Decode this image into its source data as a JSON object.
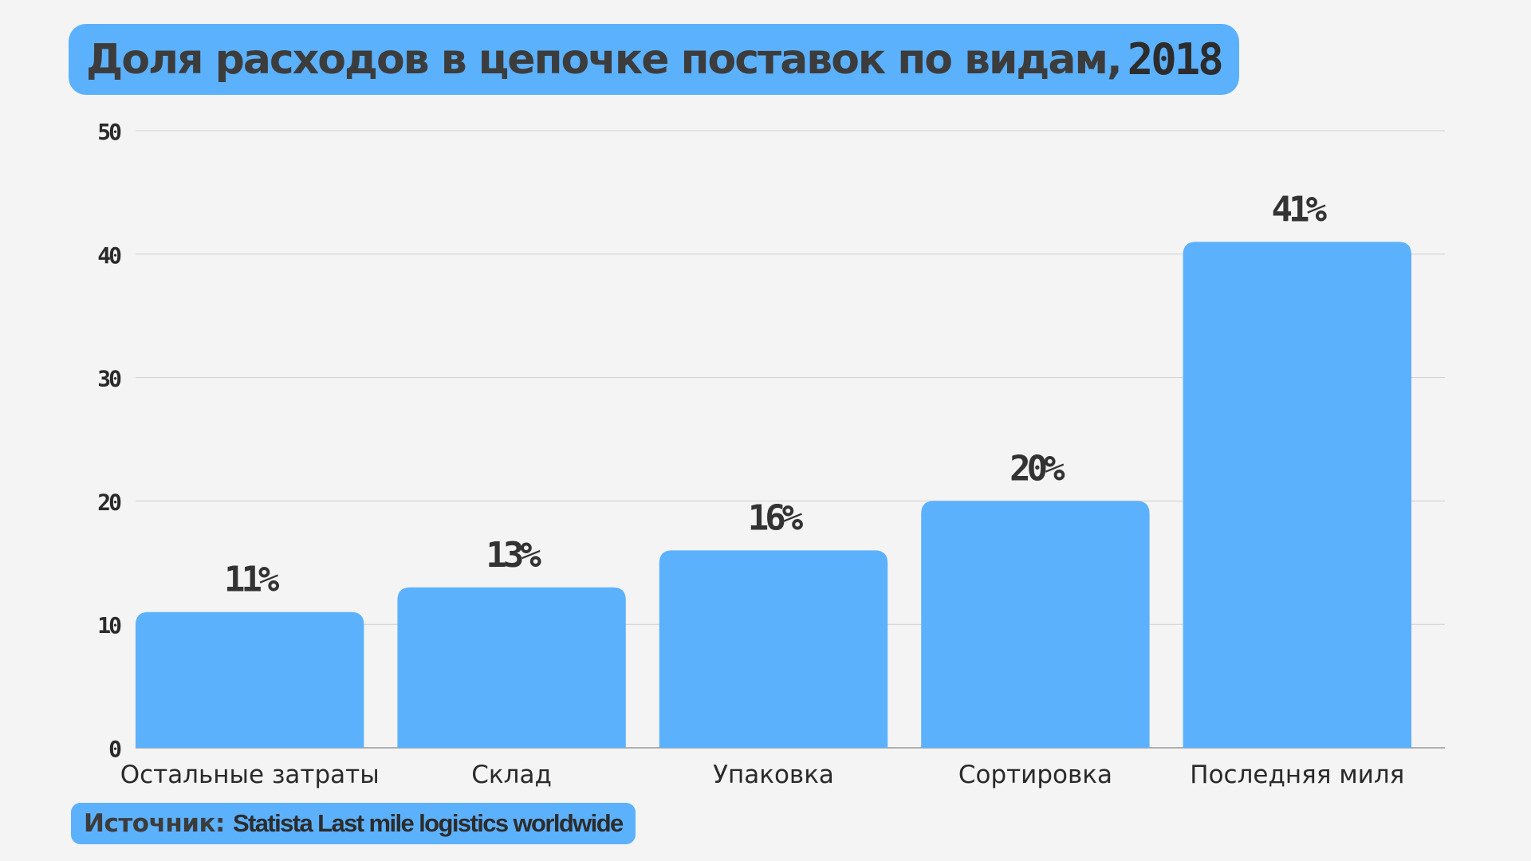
{
  "title": {
    "main": "Доля расходов в цепочке поставок по видам,",
    "year": "2018"
  },
  "source": {
    "label": "Источник:",
    "text": "Statista Last mile logistics worldwide"
  },
  "colors": {
    "bar": "#5cb1fd",
    "grid": "#cfcfcf",
    "text": "#333333",
    "background": "#f4f4f4"
  },
  "chart_data": {
    "type": "bar",
    "title": "Доля расходов в цепочке поставок по видам, 2018",
    "categories": [
      "Остальные затраты",
      "Склад",
      "Упаковка",
      "Сортировка",
      "Последняя миля"
    ],
    "values": [
      11,
      13,
      16,
      20,
      41
    ],
    "data_labels": [
      "11%",
      "13%",
      "16%",
      "20%",
      "41%"
    ],
    "yticks": [
      0,
      10,
      20,
      30,
      40,
      50
    ],
    "ylim": [
      0,
      50
    ],
    "grid": true,
    "legend": "none"
  }
}
